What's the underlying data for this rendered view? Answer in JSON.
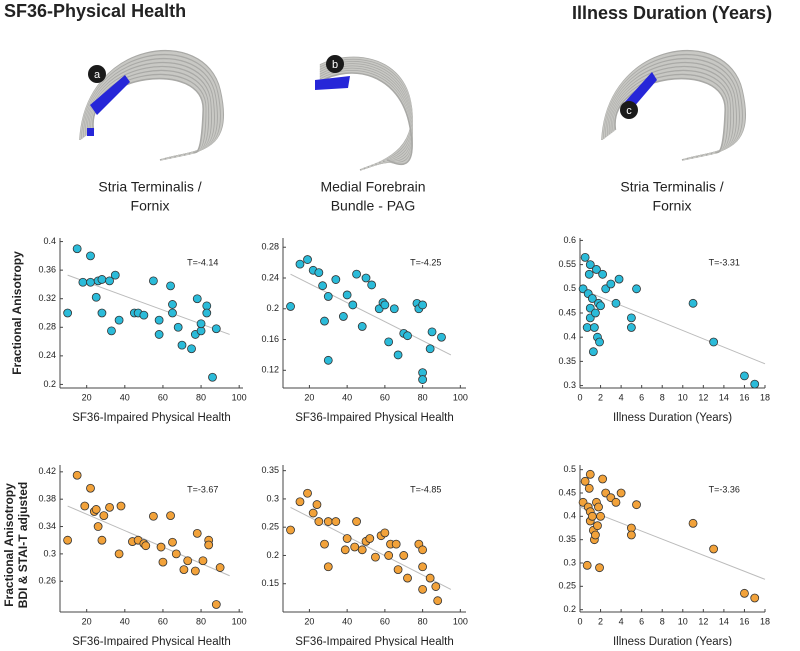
{
  "headers": [
    "SF36-Physical Health",
    "Illness Duration (Years)"
  ],
  "row_labels": [
    [
      "Fractional Anisotropy"
    ],
    [
      "Fractional Anisotropy",
      "BDI & STAI-T adjusted"
    ]
  ],
  "brains": [
    {
      "label": "a",
      "caption": [
        "Stria Terminalis /",
        "Fornix"
      ]
    },
    {
      "label": "b",
      "caption": [
        "Medial Forebrain",
        "Bundle - PAG"
      ]
    },
    {
      "label": "c",
      "caption": [
        "Stria Terminalis /",
        "Fornix"
      ]
    }
  ],
  "chart_data": [
    {
      "type": "scatter",
      "xlabel": "SF36-Impaired Physical Health",
      "annotation": "T=-4.14",
      "xlim": [
        6,
        102
      ],
      "ylim": [
        0.195,
        0.405
      ],
      "xticks": [
        20,
        40,
        60,
        80,
        100
      ],
      "yticks": [
        0.2,
        0.24,
        0.28,
        0.32,
        0.36,
        0.4
      ],
      "x": [
        10,
        15,
        18,
        22,
        22,
        25,
        26,
        28,
        28,
        32,
        33,
        35,
        37,
        45,
        47,
        50,
        55,
        58,
        58,
        64,
        65,
        65,
        68,
        70,
        75,
        77,
        78,
        80,
        80,
        83,
        83,
        86,
        88
      ],
      "series": [
        {
          "color": "#2bbbd9",
          "values": [
            0.3,
            0.39,
            0.343,
            0.38,
            0.343,
            0.322,
            0.345,
            0.3,
            0.347,
            0.345,
            0.275,
            0.353,
            0.29,
            0.3,
            0.3,
            0.297,
            0.345,
            0.27,
            0.29,
            0.338,
            0.312,
            0.3,
            0.28,
            0.255,
            0.25,
            0.27,
            0.32,
            0.275,
            0.285,
            0.31,
            0.3,
            0.21,
            0.278
          ]
        }
      ],
      "fit": {
        "x": [
          10,
          95
        ],
        "y": [
          0.353,
          0.27
        ]
      }
    },
    {
      "type": "scatter",
      "xlabel": "SF36-Impaired Physical Health",
      "annotation": "T=-4.25",
      "xlim": [
        6,
        103
      ],
      "ylim": [
        0.097,
        0.292
      ],
      "xticks": [
        20,
        40,
        60,
        80,
        100
      ],
      "yticks": [
        0.12,
        0.16,
        0.2,
        0.24,
        0.28
      ],
      "x": [
        10,
        15,
        19,
        22,
        25,
        27,
        28,
        30,
        30,
        34,
        38,
        40,
        43,
        45,
        48,
        50,
        53,
        57,
        59,
        60,
        62,
        65,
        67,
        70,
        72,
        77,
        78,
        80,
        80,
        80,
        84,
        85,
        90
      ],
      "series": [
        {
          "color": "#2bbbd9",
          "values": [
            0.203,
            0.258,
            0.264,
            0.25,
            0.247,
            0.23,
            0.184,
            0.133,
            0.216,
            0.238,
            0.19,
            0.218,
            0.205,
            0.245,
            0.177,
            0.24,
            0.231,
            0.2,
            0.208,
            0.205,
            0.157,
            0.2,
            0.14,
            0.168,
            0.165,
            0.207,
            0.2,
            0.205,
            0.117,
            0.108,
            0.148,
            0.17,
            0.163
          ]
        }
      ],
      "fit": {
        "x": [
          10,
          95
        ],
        "y": [
          0.245,
          0.14
        ]
      }
    },
    {
      "type": "scatter",
      "xlabel": "Illness Duration (Years)",
      "annotation": "T=-3.31",
      "xlim": [
        0,
        18
      ],
      "ylim": [
        0.295,
        0.605
      ],
      "xticks": [
        0,
        2,
        4,
        6,
        8,
        10,
        12,
        14,
        16,
        18
      ],
      "yticks": [
        0.3,
        0.35,
        0.4,
        0.45,
        0.5,
        0.55,
        0.6
      ],
      "x": [
        0.3,
        0.5,
        0.7,
        0.8,
        0.9,
        1,
        1,
        1,
        1.2,
        1.3,
        1.4,
        1.5,
        1.6,
        1.7,
        1.8,
        1.9,
        2,
        2.2,
        2.5,
        3,
        3.5,
        3.8,
        5,
        5,
        5.5,
        11,
        13,
        16,
        17
      ],
      "series": [
        {
          "color": "#2bbbd9",
          "values": [
            0.5,
            0.565,
            0.42,
            0.49,
            0.53,
            0.55,
            0.46,
            0.44,
            0.48,
            0.37,
            0.42,
            0.45,
            0.54,
            0.4,
            0.47,
            0.39,
            0.465,
            0.53,
            0.5,
            0.51,
            0.47,
            0.52,
            0.42,
            0.44,
            0.5,
            0.47,
            0.39,
            0.32,
            0.303
          ]
        }
      ],
      "fit": {
        "x": [
          0,
          18
        ],
        "y": [
          0.5,
          0.345
        ]
      }
    },
    {
      "type": "scatter",
      "xlabel": "SF36-Impaired Physical Health",
      "annotation": "T=-3.67",
      "xlim": [
        6,
        102
      ],
      "ylim": [
        0.215,
        0.43
      ],
      "xticks": [
        20,
        40,
        60,
        80,
        100
      ],
      "yticks": [
        0.26,
        0.3,
        0.34,
        0.38,
        0.42
      ],
      "x": [
        10,
        15,
        19,
        22,
        24,
        25,
        26,
        28,
        29,
        32,
        37,
        38,
        44,
        47,
        50,
        51,
        55,
        59,
        60,
        64,
        65,
        67,
        71,
        73,
        77,
        78,
        81,
        84,
        84,
        88,
        90
      ],
      "series": [
        {
          "color": "#f2a23a",
          "values": [
            0.32,
            0.415,
            0.37,
            0.396,
            0.362,
            0.365,
            0.34,
            0.32,
            0.356,
            0.368,
            0.3,
            0.37,
            0.318,
            0.32,
            0.315,
            0.312,
            0.355,
            0.31,
            0.288,
            0.356,
            0.317,
            0.3,
            0.277,
            0.29,
            0.275,
            0.33,
            0.29,
            0.32,
            0.313,
            0.226,
            0.28
          ]
        }
      ],
      "fit": {
        "x": [
          10,
          95
        ],
        "y": [
          0.37,
          0.268
        ]
      }
    },
    {
      "type": "scatter",
      "xlabel": "SF36-Impaired Physical Health",
      "annotation": "T=-4.85",
      "xlim": [
        6,
        103
      ],
      "ylim": [
        0.1,
        0.36
      ],
      "xticks": [
        20,
        40,
        60,
        80,
        100
      ],
      "yticks": [
        0.15,
        0.2,
        0.25,
        0.3,
        0.35
      ],
      "x": [
        10,
        15,
        19,
        22,
        24,
        25,
        28,
        30,
        30,
        34,
        39,
        40,
        44,
        45,
        48,
        50,
        52,
        55,
        58,
        60,
        62,
        63,
        66,
        67,
        70,
        72,
        78,
        80,
        80,
        80,
        84,
        87,
        88
      ],
      "series": [
        {
          "color": "#f2a23a",
          "values": [
            0.245,
            0.295,
            0.31,
            0.275,
            0.29,
            0.26,
            0.22,
            0.18,
            0.26,
            0.26,
            0.21,
            0.23,
            0.215,
            0.26,
            0.21,
            0.225,
            0.23,
            0.197,
            0.235,
            0.24,
            0.2,
            0.22,
            0.22,
            0.175,
            0.2,
            0.16,
            0.22,
            0.18,
            0.14,
            0.21,
            0.16,
            0.145,
            0.12
          ]
        }
      ],
      "fit": {
        "x": [
          10,
          95
        ],
        "y": [
          0.285,
          0.14
        ]
      }
    },
    {
      "type": "scatter",
      "xlabel": "Illness Duration (Years)",
      "annotation": "T=-3.36",
      "xlim": [
        0,
        18
      ],
      "ylim": [
        0.195,
        0.51
      ],
      "xticks": [
        0,
        2,
        4,
        6,
        8,
        10,
        12,
        14,
        16,
        18
      ],
      "yticks": [
        0.2,
        0.25,
        0.3,
        0.35,
        0.4,
        0.45,
        0.5
      ],
      "x": [
        0.3,
        0.5,
        0.7,
        0.8,
        0.9,
        1,
        1,
        1,
        1.2,
        1.3,
        1.4,
        1.5,
        1.6,
        1.7,
        1.8,
        1.9,
        2,
        2.2,
        2.5,
        3,
        3.5,
        4,
        5,
        5,
        5.5,
        11,
        13,
        16,
        17
      ],
      "series": [
        {
          "color": "#f2a23a",
          "values": [
            0.43,
            0.475,
            0.295,
            0.42,
            0.46,
            0.49,
            0.41,
            0.39,
            0.4,
            0.37,
            0.35,
            0.36,
            0.43,
            0.38,
            0.42,
            0.29,
            0.4,
            0.48,
            0.45,
            0.44,
            0.43,
            0.45,
            0.375,
            0.36,
            0.425,
            0.385,
            0.33,
            0.235,
            0.225
          ]
        }
      ],
      "fit": {
        "x": [
          0,
          18
        ],
        "y": [
          0.42,
          0.265
        ]
      }
    }
  ]
}
